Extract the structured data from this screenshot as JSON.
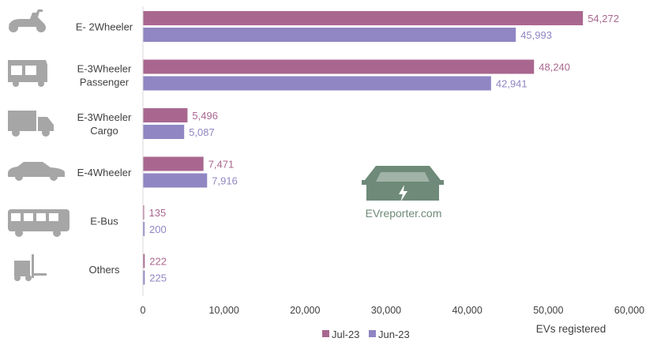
{
  "chart_data": {
    "type": "bar",
    "orientation": "horizontal",
    "categories": [
      [
        "E- 2Wheeler"
      ],
      [
        "E-3Wheeler",
        "Passenger"
      ],
      [
        "E-3Wheeler",
        "Cargo"
      ],
      [
        "E-4Wheeler"
      ],
      [
        "E-Bus"
      ],
      [
        "Others"
      ]
    ],
    "category_icons": [
      "scooter-icon",
      "auto-rickshaw-icon",
      "cargo-truck-icon",
      "car-icon",
      "bus-icon",
      "forklift-icon"
    ],
    "series": [
      {
        "name": "Jul-23",
        "color": "#a9678f",
        "values": [
          54272,
          48240,
          5496,
          7471,
          135,
          222
        ]
      },
      {
        "name": "Jun-23",
        "color": "#8f86c3",
        "values": [
          45993,
          42941,
          5087,
          7916,
          200,
          225
        ]
      }
    ],
    "xlim": [
      0,
      60000
    ],
    "xticks": [
      "0",
      "10,000",
      "20,000",
      "30,000",
      "40,000",
      "50,000",
      "60,000"
    ],
    "xlabel": "EVs registered",
    "legend_position": "bottom",
    "grid": false,
    "watermark": "EVreporter.com"
  }
}
